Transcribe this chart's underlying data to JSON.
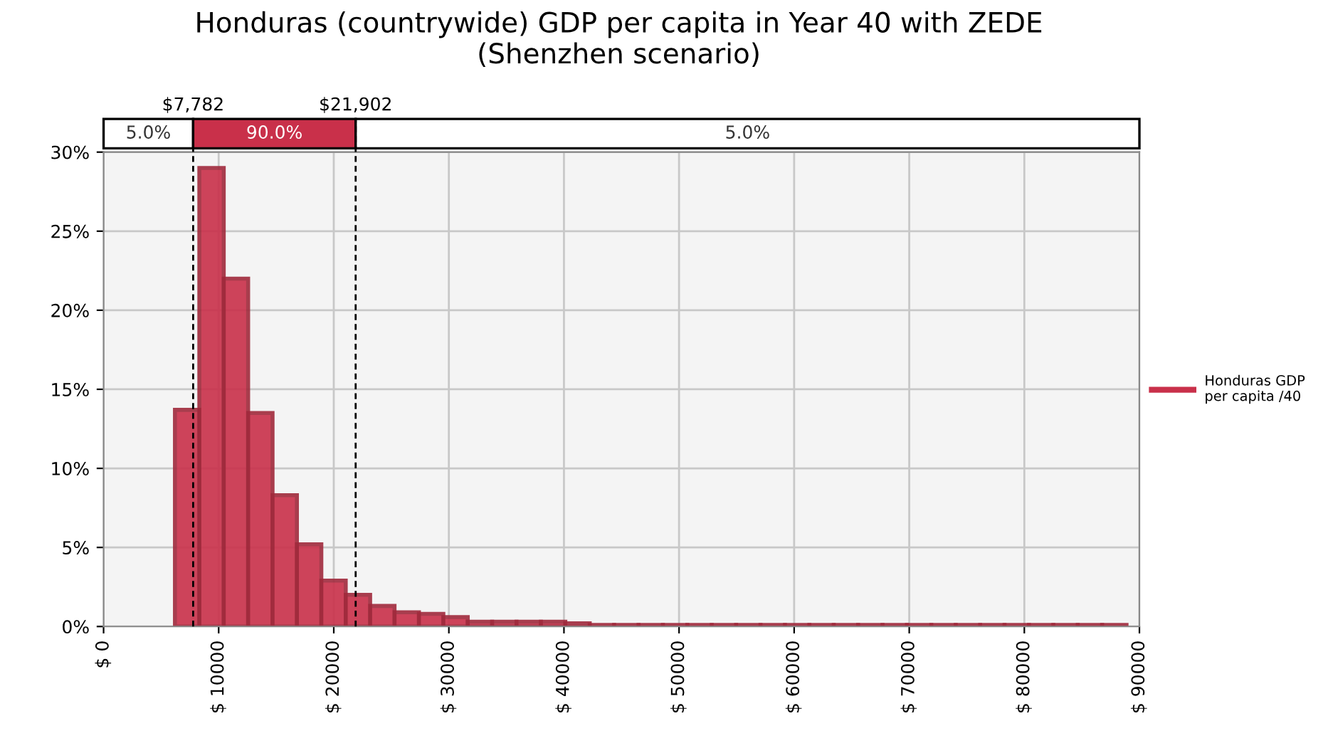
{
  "chart_data": {
    "type": "histogram",
    "title": "Honduras (countrywide) GDP per capita in Year 40 with ZEDE\n(Shenzhen scenario)",
    "bins": [
      6200,
      8320,
      10440,
      12560,
      14680,
      16800,
      18920,
      21040,
      23160,
      25280,
      27400,
      29520,
      31640,
      33760,
      35880,
      38000,
      40120,
      42240,
      44360,
      46480,
      48600,
      50720,
      52840,
      54960,
      57080,
      59200,
      61320,
      63440,
      65560,
      67680,
      69800,
      71920,
      74040,
      76160,
      78280,
      80400,
      82520,
      84640,
      86760,
      88880
    ],
    "series": [
      {
        "name": "Honduras GDP per capita /40",
        "color": "#c9304a",
        "values": [
          13.7,
          29.0,
          22.0,
          13.5,
          8.3,
          5.2,
          2.9,
          2.0,
          1.3,
          0.9,
          0.8,
          0.6,
          0.3,
          0.3,
          0.3,
          0.3,
          0.2,
          0.1,
          0.1,
          0.1,
          0.1,
          0.1,
          0.1,
          0.1,
          0.1,
          0.1,
          0.1,
          0.1,
          0.1,
          0.1,
          0.1,
          0.1,
          0.1,
          0.1,
          0.1,
          0.1,
          0.1,
          0.1,
          0.1
        ]
      }
    ],
    "xlim": [
      0,
      90000
    ],
    "xticks": [
      {
        "value": 0,
        "label": "$ 0"
      },
      {
        "value": 10000,
        "label": "$ 10000"
      },
      {
        "value": 20000,
        "label": "$ 20000"
      },
      {
        "value": 30000,
        "label": "$ 30000"
      },
      {
        "value": 40000,
        "label": "$ 40000"
      },
      {
        "value": 50000,
        "label": "$ 50000"
      },
      {
        "value": 60000,
        "label": "$ 60000"
      },
      {
        "value": 70000,
        "label": "$ 70000"
      },
      {
        "value": 80000,
        "label": "$ 80000"
      },
      {
        "value": 90000,
        "label": "$ 90000"
      }
    ],
    "ylim": [
      0,
      30
    ],
    "yticks": [
      {
        "value": 0,
        "label": "0%"
      },
      {
        "value": 5,
        "label": "5%"
      },
      {
        "value": 10,
        "label": "10%"
      },
      {
        "value": 15,
        "label": "15%"
      },
      {
        "value": 20,
        "label": "20%"
      },
      {
        "value": 25,
        "label": "25%"
      },
      {
        "value": 30,
        "label": "30%"
      }
    ],
    "ref_lines": [
      {
        "axis": "x",
        "value": 7782,
        "label": "$7,782",
        "line_style": "dashed",
        "color": "#000000"
      },
      {
        "axis": "x",
        "value": 21902,
        "label": "$21,902",
        "line_style": "dashed",
        "color": "#000000"
      }
    ],
    "annotations": [
      "5.0%",
      "90.0%",
      "5.0%"
    ],
    "grid": true,
    "legend": "right"
  }
}
